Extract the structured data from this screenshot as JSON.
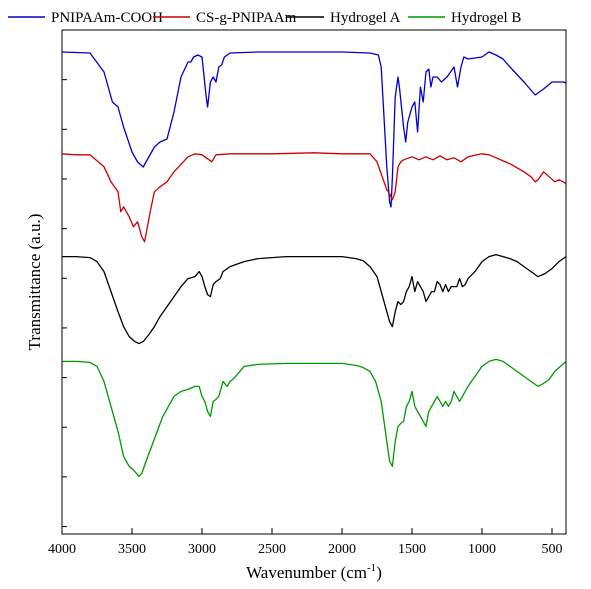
{
  "chart_data": {
    "type": "line",
    "title": "",
    "xlabel": "Wavenumber (cm",
    "xlabel_sup": "-1",
    "xlabel_end": ")",
    "ylabel": "Transmittance (a.u.)",
    "xlim": [
      4000,
      400
    ],
    "x_reversed": true,
    "x_ticks": [
      4000,
      3500,
      3000,
      2500,
      2000,
      1500,
      1000,
      500
    ],
    "x_tick_labels": [
      "4000",
      "3500",
      "3000",
      "2500",
      "2000",
      "1500",
      "1000",
      "500"
    ],
    "y_tick_count": 10,
    "grid": false,
    "legend_position": "top",
    "series": [
      {
        "name": "PNIPAAm-COOH",
        "color": "#0000CC",
        "baseline": 0,
        "points": [
          [
            4000,
            5
          ],
          [
            3800,
            6
          ],
          [
            3700,
            25
          ],
          [
            3640,
            55
          ],
          [
            3600,
            60
          ],
          [
            3560,
            80
          ],
          [
            3500,
            105
          ],
          [
            3460,
            115
          ],
          [
            3420,
            120
          ],
          [
            3380,
            110
          ],
          [
            3340,
            100
          ],
          [
            3300,
            95
          ],
          [
            3250,
            92
          ],
          [
            3200,
            65
          ],
          [
            3150,
            30
          ],
          [
            3100,
            15
          ],
          [
            3080,
            15
          ],
          [
            3060,
            10
          ],
          [
            3030,
            8
          ],
          [
            3000,
            10
          ],
          [
            2985,
            30
          ],
          [
            2970,
            50
          ],
          [
            2960,
            60
          ],
          [
            2940,
            35
          ],
          [
            2920,
            30
          ],
          [
            2900,
            35
          ],
          [
            2880,
            20
          ],
          [
            2860,
            18
          ],
          [
            2840,
            10
          ],
          [
            2800,
            6
          ],
          [
            2600,
            5
          ],
          [
            2400,
            5
          ],
          [
            2200,
            5
          ],
          [
            2000,
            5
          ],
          [
            1800,
            6
          ],
          [
            1740,
            8
          ],
          [
            1720,
            20
          ],
          [
            1700,
            70
          ],
          [
            1680,
            120
          ],
          [
            1660,
            155
          ],
          [
            1650,
            160
          ],
          [
            1640,
            130
          ],
          [
            1620,
            50
          ],
          [
            1600,
            30
          ],
          [
            1590,
            40
          ],
          [
            1560,
            80
          ],
          [
            1545,
            95
          ],
          [
            1530,
            75
          ],
          [
            1500,
            60
          ],
          [
            1480,
            55
          ],
          [
            1460,
            85
          ],
          [
            1440,
            40
          ],
          [
            1420,
            55
          ],
          [
            1400,
            25
          ],
          [
            1380,
            22
          ],
          [
            1365,
            40
          ],
          [
            1350,
            30
          ],
          [
            1320,
            30
          ],
          [
            1290,
            35
          ],
          [
            1250,
            30
          ],
          [
            1200,
            20
          ],
          [
            1175,
            40
          ],
          [
            1150,
            20
          ],
          [
            1130,
            10
          ],
          [
            1100,
            12
          ],
          [
            1000,
            10
          ],
          [
            950,
            5
          ],
          [
            900,
            8
          ],
          [
            850,
            12
          ],
          [
            800,
            20
          ],
          [
            700,
            35
          ],
          [
            620,
            48
          ],
          [
            560,
            42
          ],
          [
            500,
            35
          ],
          [
            420,
            35
          ],
          [
            400,
            36
          ]
        ]
      },
      {
        "name": "CS-g-PNIPAAm",
        "color": "#CC0000",
        "baseline": 0.8,
        "points": [
          [
            4000,
            2
          ],
          [
            3900,
            3
          ],
          [
            3800,
            3
          ],
          [
            3700,
            15
          ],
          [
            3650,
            30
          ],
          [
            3600,
            40
          ],
          [
            3580,
            60
          ],
          [
            3560,
            55
          ],
          [
            3540,
            60
          ],
          [
            3520,
            65
          ],
          [
            3490,
            75
          ],
          [
            3460,
            70
          ],
          [
            3440,
            80
          ],
          [
            3430,
            85
          ],
          [
            3410,
            90
          ],
          [
            3390,
            75
          ],
          [
            3370,
            60
          ],
          [
            3340,
            40
          ],
          [
            3300,
            35
          ],
          [
            3250,
            30
          ],
          [
            3200,
            20
          ],
          [
            3100,
            5
          ],
          [
            3050,
            2
          ],
          [
            3000,
            3
          ],
          [
            2950,
            8
          ],
          [
            2930,
            10
          ],
          [
            2900,
            3
          ],
          [
            2800,
            2
          ],
          [
            2500,
            2
          ],
          [
            2200,
            1
          ],
          [
            2000,
            2
          ],
          [
            1800,
            2
          ],
          [
            1750,
            10
          ],
          [
            1700,
            30
          ],
          [
            1680,
            38
          ],
          [
            1660,
            42
          ],
          [
            1640,
            48
          ],
          [
            1620,
            40
          ],
          [
            1600,
            15
          ],
          [
            1580,
            10
          ],
          [
            1560,
            8
          ],
          [
            1500,
            5
          ],
          [
            1450,
            8
          ],
          [
            1400,
            5
          ],
          [
            1350,
            8
          ],
          [
            1300,
            4
          ],
          [
            1250,
            8
          ],
          [
            1200,
            6
          ],
          [
            1150,
            10
          ],
          [
            1100,
            5
          ],
          [
            1000,
            2
          ],
          [
            950,
            3
          ],
          [
            900,
            6
          ],
          [
            800,
            12
          ],
          [
            700,
            20
          ],
          [
            650,
            25
          ],
          [
            620,
            30
          ],
          [
            600,
            28
          ],
          [
            560,
            20
          ],
          [
            520,
            25
          ],
          [
            480,
            30
          ],
          [
            450,
            28
          ],
          [
            420,
            30
          ],
          [
            400,
            32
          ]
        ]
      },
      {
        "name": "Hydrogel A",
        "color": "#000000",
        "baseline": 1.6,
        "points": [
          [
            4000,
            0
          ],
          [
            3900,
            0
          ],
          [
            3800,
            1
          ],
          [
            3750,
            5
          ],
          [
            3700,
            15
          ],
          [
            3650,
            35
          ],
          [
            3600,
            55
          ],
          [
            3560,
            70
          ],
          [
            3520,
            80
          ],
          [
            3480,
            85
          ],
          [
            3450,
            87
          ],
          [
            3420,
            85
          ],
          [
            3380,
            78
          ],
          [
            3340,
            70
          ],
          [
            3300,
            60
          ],
          [
            3250,
            50
          ],
          [
            3200,
            40
          ],
          [
            3150,
            30
          ],
          [
            3100,
            22
          ],
          [
            3050,
            20
          ],
          [
            3020,
            15
          ],
          [
            3000,
            20
          ],
          [
            2980,
            30
          ],
          [
            2960,
            38
          ],
          [
            2940,
            40
          ],
          [
            2920,
            28
          ],
          [
            2900,
            25
          ],
          [
            2870,
            22
          ],
          [
            2850,
            15
          ],
          [
            2800,
            10
          ],
          [
            2700,
            5
          ],
          [
            2600,
            2
          ],
          [
            2400,
            0
          ],
          [
            2200,
            0
          ],
          [
            2000,
            0
          ],
          [
            1900,
            2
          ],
          [
            1850,
            4
          ],
          [
            1800,
            10
          ],
          [
            1750,
            20
          ],
          [
            1720,
            35
          ],
          [
            1700,
            45
          ],
          [
            1680,
            55
          ],
          [
            1660,
            65
          ],
          [
            1640,
            70
          ],
          [
            1620,
            55
          ],
          [
            1600,
            45
          ],
          [
            1580,
            48
          ],
          [
            1560,
            45
          ],
          [
            1540,
            35
          ],
          [
            1520,
            30
          ],
          [
            1500,
            20
          ],
          [
            1480,
            35
          ],
          [
            1460,
            25
          ],
          [
            1440,
            30
          ],
          [
            1420,
            35
          ],
          [
            1400,
            45
          ],
          [
            1380,
            40
          ],
          [
            1360,
            35
          ],
          [
            1340,
            35
          ],
          [
            1320,
            25
          ],
          [
            1300,
            28
          ],
          [
            1280,
            35
          ],
          [
            1260,
            28
          ],
          [
            1240,
            35
          ],
          [
            1220,
            30
          ],
          [
            1180,
            30
          ],
          [
            1160,
            22
          ],
          [
            1140,
            30
          ],
          [
            1120,
            28
          ],
          [
            1100,
            22
          ],
          [
            1050,
            15
          ],
          [
            1000,
            5
          ],
          [
            950,
            0
          ],
          [
            900,
            -2
          ],
          [
            850,
            0
          ],
          [
            800,
            2
          ],
          [
            750,
            5
          ],
          [
            700,
            10
          ],
          [
            650,
            15
          ],
          [
            600,
            20
          ],
          [
            550,
            17
          ],
          [
            500,
            12
          ],
          [
            450,
            5
          ],
          [
            400,
            0
          ]
        ]
      },
      {
        "name": "Hydrogel B",
        "color": "#009900",
        "baseline": 2.4,
        "points": [
          [
            4000,
            0
          ],
          [
            3900,
            0
          ],
          [
            3800,
            1
          ],
          [
            3750,
            5
          ],
          [
            3700,
            20
          ],
          [
            3650,
            45
          ],
          [
            3600,
            70
          ],
          [
            3560,
            95
          ],
          [
            3520,
            105
          ],
          [
            3480,
            110
          ],
          [
            3450,
            115
          ],
          [
            3430,
            112
          ],
          [
            3400,
            100
          ],
          [
            3360,
            85
          ],
          [
            3320,
            70
          ],
          [
            3280,
            55
          ],
          [
            3240,
            45
          ],
          [
            3200,
            35
          ],
          [
            3150,
            30
          ],
          [
            3100,
            28
          ],
          [
            3050,
            25
          ],
          [
            3020,
            25
          ],
          [
            3000,
            35
          ],
          [
            2980,
            40
          ],
          [
            2960,
            50
          ],
          [
            2940,
            55
          ],
          [
            2920,
            40
          ],
          [
            2900,
            38
          ],
          [
            2880,
            35
          ],
          [
            2850,
            20
          ],
          [
            2820,
            25
          ],
          [
            2800,
            20
          ],
          [
            2780,
            18
          ],
          [
            2760,
            15
          ],
          [
            2700,
            5
          ],
          [
            2600,
            3
          ],
          [
            2400,
            2
          ],
          [
            2200,
            2
          ],
          [
            2000,
            2
          ],
          [
            1900,
            4
          ],
          [
            1850,
            6
          ],
          [
            1800,
            10
          ],
          [
            1760,
            20
          ],
          [
            1720,
            40
          ],
          [
            1700,
            60
          ],
          [
            1680,
            80
          ],
          [
            1660,
            100
          ],
          [
            1640,
            105
          ],
          [
            1620,
            80
          ],
          [
            1600,
            65
          ],
          [
            1580,
            62
          ],
          [
            1560,
            60
          ],
          [
            1540,
            45
          ],
          [
            1520,
            40
          ],
          [
            1500,
            30
          ],
          [
            1480,
            45
          ],
          [
            1460,
            50
          ],
          [
            1440,
            55
          ],
          [
            1420,
            60
          ],
          [
            1400,
            65
          ],
          [
            1380,
            50
          ],
          [
            1360,
            45
          ],
          [
            1340,
            40
          ],
          [
            1320,
            35
          ],
          [
            1300,
            40
          ],
          [
            1280,
            45
          ],
          [
            1260,
            40
          ],
          [
            1240,
            45
          ],
          [
            1220,
            40
          ],
          [
            1200,
            30
          ],
          [
            1180,
            35
          ],
          [
            1160,
            40
          ],
          [
            1140,
            35
          ],
          [
            1120,
            30
          ],
          [
            1100,
            25
          ],
          [
            1050,
            15
          ],
          [
            1000,
            5
          ],
          [
            950,
            0
          ],
          [
            900,
            -2
          ],
          [
            850,
            0
          ],
          [
            800,
            5
          ],
          [
            750,
            10
          ],
          [
            700,
            15
          ],
          [
            650,
            20
          ],
          [
            600,
            25
          ],
          [
            560,
            22
          ],
          [
            520,
            18
          ],
          [
            480,
            10
          ],
          [
            440,
            5
          ],
          [
            400,
            0
          ]
        ]
      }
    ]
  }
}
